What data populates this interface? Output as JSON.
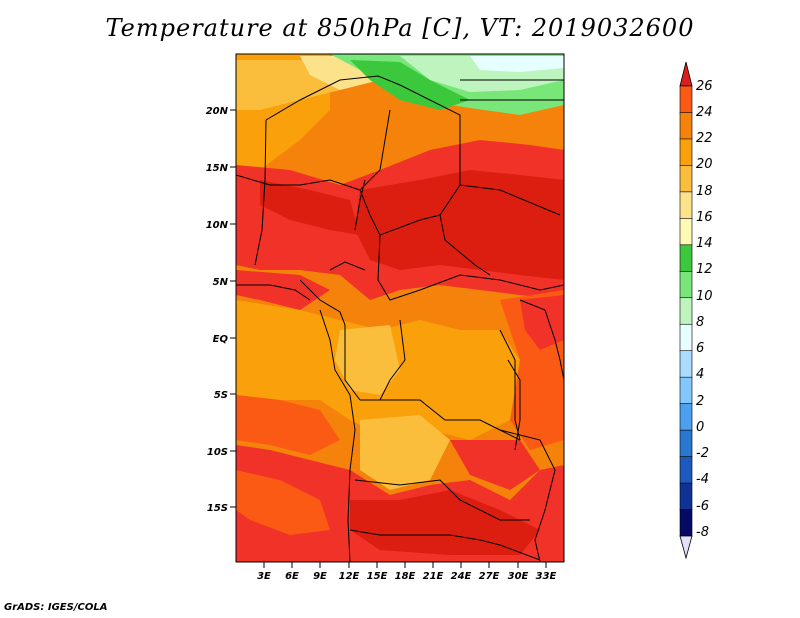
{
  "title": "Temperature at 850hPa [C], VT: 2019032600",
  "credit": "GrADS: IGES/COLA",
  "map": {
    "lat_labels": [
      "20N",
      "15N",
      "10N",
      "5N",
      "EQ",
      "5S",
      "10S",
      "15S"
    ],
    "lon_labels": [
      "3E",
      "6E",
      "9E",
      "12E",
      "15E",
      "18E",
      "21E",
      "24E",
      "27E",
      "30E",
      "33E"
    ]
  },
  "colorbar": {
    "levels": [
      "26",
      "24",
      "22",
      "20",
      "18",
      "16",
      "14",
      "12",
      "10",
      "8",
      "6",
      "4",
      "2",
      "0",
      "-2",
      "-4",
      "-6",
      "-8"
    ],
    "colors": [
      "#f03228",
      "#fa5a14",
      "#f5820a",
      "#faa00a",
      "#fbbe3c",
      "#fde28c",
      "#fefab4",
      "#3cc83c",
      "#78e678",
      "#bef5be",
      "#e6ffff",
      "#aadcff",
      "#82c8ff",
      "#4ba0f0",
      "#2878d2",
      "#1e5abe",
      "#0f3296",
      "#050a64"
    ],
    "top_arrow_color": "#dc1e1e",
    "bottom_arrow_color": "#e1e1fa"
  },
  "palette": {
    "hot": "#dc1e10",
    "warm": "#f03228",
    "orange": "#fa5a14",
    "amber": "#f5820a",
    "gold": "#faa00a",
    "pale": "#fbbe3c",
    "light": "#fde28c",
    "cream": "#fefab4",
    "green": "#3cc83c",
    "lightgreen": "#78e678",
    "mint": "#bef5be"
  }
}
